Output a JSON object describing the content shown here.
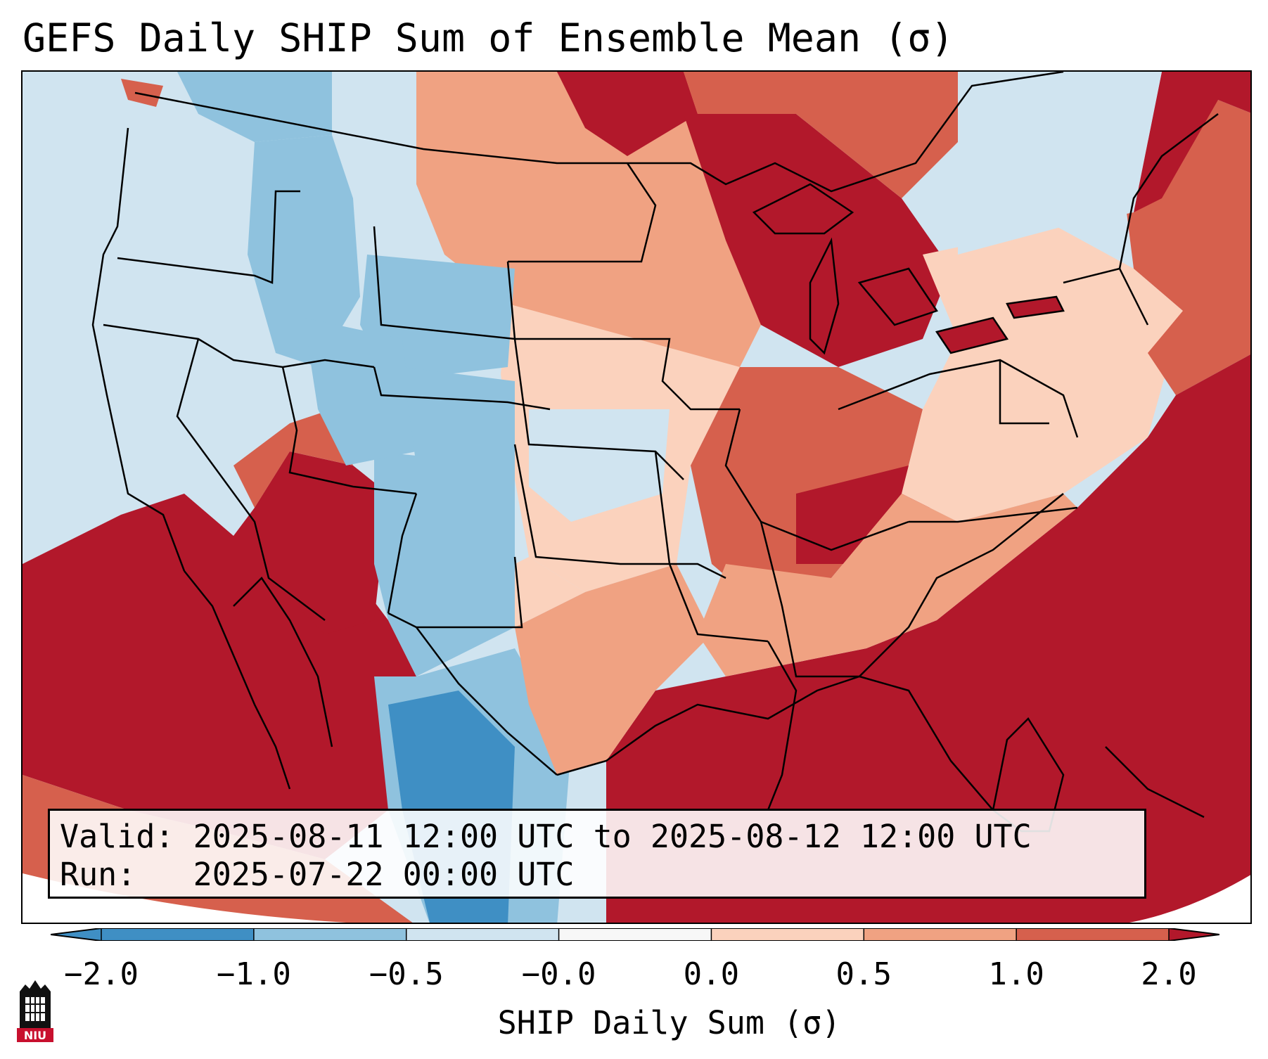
{
  "title": "GEFS Daily SHIP Sum of Ensemble Mean (σ)",
  "info": {
    "valid_label": "Valid:",
    "valid_value": "2025-08-11 12:00 UTC to 2025-08-12 12:00 UTC",
    "run_label": "Run:",
    "run_value": "2025-07-22 00:00 UTC"
  },
  "colorbar": {
    "label": "SHIP Daily Sum (σ)",
    "ticks": [
      "−2.0",
      "−1.0",
      "−0.5",
      "−0.0",
      "0.0",
      "0.5",
      "1.0",
      "2.0"
    ],
    "colors": [
      "#3f8fc4",
      "#8fc2de",
      "#d0e4f0",
      "#f7f7f7",
      "#fbd2bd",
      "#f0a282",
      "#d6604d",
      "#b2182b"
    ]
  },
  "logo": {
    "text": "NIU",
    "icon": "niu-tower-logo"
  },
  "map": {
    "region": "Contiguous United States",
    "ocean_color": "#d0e4f0"
  }
}
